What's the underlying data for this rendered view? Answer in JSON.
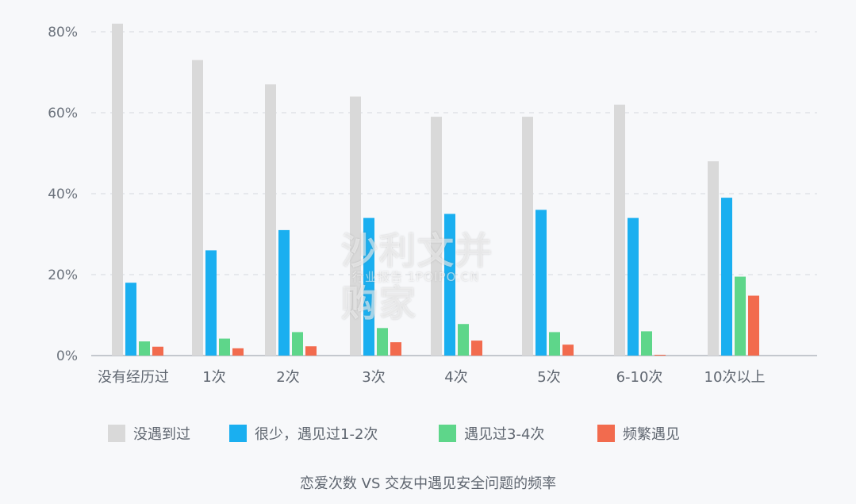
{
  "chart_data": {
    "type": "bar",
    "categories": [
      "没有经历过",
      "1次",
      "2次",
      "3次",
      "4次",
      "5次",
      "6-10次",
      "10次以上"
    ],
    "series": [
      {
        "name": "没遇到过",
        "color": "#d9d9d9",
        "values": [
          82,
          73,
          67,
          64,
          59,
          59,
          62,
          48
        ]
      },
      {
        "name": "很少，遇见过1-2次",
        "color": "#1aaff0",
        "values": [
          18,
          26,
          31,
          34,
          35,
          36,
          34,
          39
        ]
      },
      {
        "name": "遇见过3-4次",
        "color": "#5ed68a",
        "values": [
          3.5,
          4.2,
          5.8,
          6.8,
          7.8,
          5.8,
          6.0,
          19.5
        ]
      },
      {
        "name": "频繁遇见",
        "color": "#f26b4e",
        "values": [
          2.2,
          1.8,
          2.3,
          3.3,
          3.7,
          2.7,
          0.2,
          14.8
        ]
      }
    ],
    "y_ticks": [
      "0%",
      "20%",
      "40%",
      "60%",
      "80%"
    ],
    "ylim": [
      0,
      80
    ],
    "grid": true,
    "legend_position": "bottom",
    "caption": "恋爱次数 VS 交友中遇见安全问题的频率"
  },
  "watermark": {
    "main": "沙利文并购家",
    "sub": "行业报告 1POIPO.CN"
  }
}
